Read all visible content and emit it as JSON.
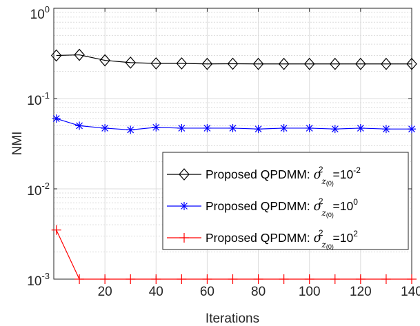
{
  "chart_data": {
    "type": "line",
    "xlabel": "Iterations",
    "ylabel": "NMI",
    "xlim": [
      0,
      140
    ],
    "ylim": [
      0.001,
      1
    ],
    "yscale": "log",
    "grid": true,
    "legend_placement": "bottom-right",
    "x_ticks": [
      {
        "value": 20,
        "label": "20"
      },
      {
        "value": 40,
        "label": "40"
      },
      {
        "value": 60,
        "label": "60"
      },
      {
        "value": 80,
        "label": "80"
      },
      {
        "value": 100,
        "label": "100"
      },
      {
        "value": 120,
        "label": "120"
      },
      {
        "value": 140,
        "label": "140"
      }
    ],
    "y_ticks": [
      {
        "value": 1,
        "base": "10",
        "exp": "0"
      },
      {
        "value": 0.1,
        "base": "10",
        "exp": "-1"
      },
      {
        "value": 0.01,
        "base": "10",
        "exp": "-2"
      },
      {
        "value": 0.001,
        "base": "10",
        "exp": "-3"
      }
    ],
    "x": [
      1,
      10,
      20,
      30,
      40,
      50,
      60,
      70,
      80,
      90,
      100,
      110,
      120,
      130,
      140
    ],
    "series": [
      {
        "key": "diamond",
        "label_prefix": "Proposed QPDMM: ",
        "label_value": "10",
        "label_exp": "-2",
        "color": "#000000",
        "marker": "diamond",
        "values": [
          0.3,
          0.305,
          0.265,
          0.25,
          0.245,
          0.245,
          0.242,
          0.243,
          0.242,
          0.242,
          0.242,
          0.242,
          0.242,
          0.242,
          0.242
        ]
      },
      {
        "key": "star",
        "label_prefix": "Proposed QPDMM: ",
        "label_value": "10",
        "label_exp": "0",
        "color": "#0000ff",
        "marker": "star",
        "values": [
          0.06,
          0.05,
          0.047,
          0.045,
          0.048,
          0.047,
          0.047,
          0.047,
          0.046,
          0.047,
          0.047,
          0.046,
          0.047,
          0.046,
          0.046
        ]
      },
      {
        "key": "plus",
        "label_prefix": "Proposed QPDMM: ",
        "label_value": "10",
        "label_exp": "2",
        "color": "#ff0000",
        "marker": "plus",
        "values": [
          0.0035,
          0.001,
          0.001,
          0.001,
          0.001,
          0.001,
          0.001,
          0.001,
          0.001,
          0.001,
          0.001,
          0.001,
          0.001,
          0.001,
          0.001
        ]
      }
    ]
  }
}
